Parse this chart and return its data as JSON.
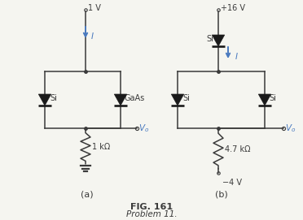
{
  "bg_color": "#f5f5f0",
  "line_color": "#3a3a3a",
  "diode_color": "#1a1a1a",
  "arrow_color": "#4a7abf",
  "label_color": "#000000",
  "vo_color": "#4a7abf",
  "title": "FIG. 161",
  "subtitle": "Problem 11.",
  "circuit_a_label": "(a)",
  "circuit_b_label": "(b)",
  "a_vdd": "1 V",
  "a_d1_label": "Si",
  "a_d2_label": "GaAs",
  "a_res_label": "1 kΩ",
  "b_vdd": "+16 V",
  "b_dtop_label": "Si",
  "b_d1_label": "Si",
  "b_d2_label": "Si",
  "b_res_label": "4.7 kΩ",
  "b_vee": "−4 V",
  "vo_label": "V_o",
  "current_label": "I"
}
